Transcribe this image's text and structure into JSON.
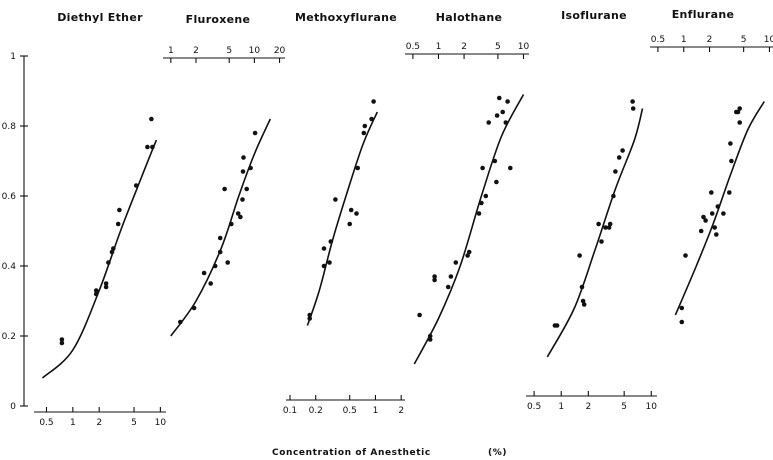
{
  "chart_data": {
    "type": "scatter",
    "xlabel": "Concentration of Anesthetic",
    "xlabel_unit": "(%)",
    "y_axis": {
      "ylim": [
        0,
        1
      ],
      "ticks": [
        "0",
        "0.2",
        "0.4",
        "0.6",
        "0.8",
        "1"
      ]
    },
    "x_scale": "log",
    "panels": [
      {
        "title": "Diethyl Ether",
        "axis_position": "bottom",
        "xlim": [
          0.4,
          11
        ],
        "ticks": [
          0.5,
          1,
          2,
          5,
          10
        ],
        "tick_labels": [
          "0.5",
          "1",
          "2",
          "5",
          "10"
        ],
        "points": [
          [
            0.75,
            0.19
          ],
          [
            0.75,
            0.18
          ],
          [
            1.85,
            0.33
          ],
          [
            1.85,
            0.32
          ],
          [
            2.4,
            0.35
          ],
          [
            2.4,
            0.34
          ],
          [
            2.55,
            0.41
          ],
          [
            2.8,
            0.44
          ],
          [
            2.9,
            0.45
          ],
          [
            3.3,
            0.52
          ],
          [
            3.4,
            0.56
          ],
          [
            5.3,
            0.63
          ],
          [
            7.1,
            0.74
          ],
          [
            7.9,
            0.82
          ],
          [
            8.1,
            0.74
          ]
        ],
        "curve": [
          [
            0.45,
            0.08
          ],
          [
            1.0,
            0.16
          ],
          [
            2.0,
            0.33
          ],
          [
            3.5,
            0.5
          ],
          [
            6.0,
            0.65
          ],
          [
            9.0,
            0.76
          ]
        ]
      },
      {
        "title": "Fluroxene",
        "axis_position": "top",
        "xlim": [
          0.9,
          22
        ],
        "ticks": [
          1,
          2,
          5,
          10,
          20
        ],
        "tick_labels": [
          "1",
          "2",
          "5",
          "10",
          "20"
        ],
        "points": [
          [
            1.3,
            0.24
          ],
          [
            1.9,
            0.28
          ],
          [
            2.5,
            0.38
          ],
          [
            3.0,
            0.35
          ],
          [
            3.4,
            0.4
          ],
          [
            3.9,
            0.44
          ],
          [
            3.9,
            0.48
          ],
          [
            4.4,
            0.62
          ],
          [
            4.8,
            0.41
          ],
          [
            5.3,
            0.52
          ],
          [
            6.4,
            0.55
          ],
          [
            6.8,
            0.54
          ],
          [
            7.2,
            0.59
          ],
          [
            7.3,
            0.67
          ],
          [
            7.4,
            0.71
          ],
          [
            8.1,
            0.62
          ],
          [
            9.0,
            0.68
          ],
          [
            10.2,
            0.78
          ]
        ],
        "curve": [
          [
            1.0,
            0.2
          ],
          [
            2.0,
            0.3
          ],
          [
            4.0,
            0.45
          ],
          [
            6.5,
            0.6
          ],
          [
            10.0,
            0.72
          ],
          [
            15.5,
            0.82
          ]
        ]
      },
      {
        "title": "Methoxyflurane",
        "axis_position": "bottom",
        "xlim": [
          0.1,
          2.1
        ],
        "ticks": [
          0.1,
          0.2,
          0.5,
          1,
          2
        ],
        "tick_labels": [
          "0.1",
          "0.2",
          "0.5",
          "1",
          "2"
        ],
        "points": [
          [
            0.17,
            0.25
          ],
          [
            0.17,
            0.26
          ],
          [
            0.25,
            0.4
          ],
          [
            0.25,
            0.45
          ],
          [
            0.29,
            0.41
          ],
          [
            0.3,
            0.47
          ],
          [
            0.34,
            0.59
          ],
          [
            0.5,
            0.52
          ],
          [
            0.52,
            0.56
          ],
          [
            0.6,
            0.55
          ],
          [
            0.62,
            0.68
          ],
          [
            0.73,
            0.78
          ],
          [
            0.75,
            0.8
          ],
          [
            0.9,
            0.82
          ],
          [
            0.95,
            0.87
          ]
        ],
        "curve": [
          [
            0.16,
            0.23
          ],
          [
            0.22,
            0.33
          ],
          [
            0.32,
            0.48
          ],
          [
            0.48,
            0.62
          ],
          [
            0.72,
            0.75
          ],
          [
            1.05,
            0.84
          ]
        ]
      },
      {
        "title": "Halothane",
        "axis_position": "top",
        "xlim": [
          0.45,
          11
        ],
        "ticks": [
          0.5,
          1,
          2,
          5,
          10
        ],
        "tick_labels": [
          "0.5",
          "1",
          "2",
          "5",
          "10"
        ],
        "points": [
          [
            0.6,
            0.26
          ],
          [
            0.8,
            0.19
          ],
          [
            0.8,
            0.2
          ],
          [
            0.9,
            0.36
          ],
          [
            0.9,
            0.37
          ],
          [
            1.3,
            0.34
          ],
          [
            1.4,
            0.37
          ],
          [
            1.6,
            0.41
          ],
          [
            2.2,
            0.43
          ],
          [
            2.3,
            0.44
          ],
          [
            3.0,
            0.55
          ],
          [
            3.2,
            0.58
          ],
          [
            3.3,
            0.68
          ],
          [
            3.6,
            0.6
          ],
          [
            3.9,
            0.81
          ],
          [
            4.6,
            0.7
          ],
          [
            4.8,
            0.64
          ],
          [
            4.9,
            0.83
          ],
          [
            5.2,
            0.88
          ],
          [
            5.7,
            0.84
          ],
          [
            6.2,
            0.81
          ],
          [
            6.5,
            0.87
          ],
          [
            7.0,
            0.68
          ]
        ],
        "curve": [
          [
            0.52,
            0.12
          ],
          [
            1.0,
            0.25
          ],
          [
            1.8,
            0.4
          ],
          [
            3.2,
            0.6
          ],
          [
            5.5,
            0.77
          ],
          [
            10.0,
            0.89
          ]
        ]
      },
      {
        "title": "Isoflurane",
        "axis_position": "bottom",
        "xlim": [
          0.45,
          11
        ],
        "ticks": [
          0.5,
          1,
          2,
          5,
          10
        ],
        "tick_labels": [
          "0.5",
          "1",
          "2",
          "5",
          "10"
        ],
        "points": [
          [
            0.85,
            0.23
          ],
          [
            0.9,
            0.23
          ],
          [
            1.6,
            0.43
          ],
          [
            1.7,
            0.34
          ],
          [
            1.75,
            0.3
          ],
          [
            1.8,
            0.29
          ],
          [
            2.6,
            0.52
          ],
          [
            2.8,
            0.47
          ],
          [
            3.1,
            0.51
          ],
          [
            3.4,
            0.51
          ],
          [
            3.5,
            0.52
          ],
          [
            3.8,
            0.6
          ],
          [
            4.0,
            0.67
          ],
          [
            4.4,
            0.71
          ],
          [
            4.8,
            0.73
          ],
          [
            6.2,
            0.87
          ],
          [
            6.3,
            0.85
          ]
        ],
        "curve": [
          [
            0.7,
            0.14
          ],
          [
            1.4,
            0.28
          ],
          [
            2.4,
            0.45
          ],
          [
            4.0,
            0.62
          ],
          [
            6.5,
            0.76
          ],
          [
            8.0,
            0.85
          ]
        ]
      },
      {
        "title": "Enflurane",
        "axis_position": "top",
        "xlim": [
          0.45,
          11
        ],
        "ticks": [
          0.5,
          1,
          2,
          5,
          10
        ],
        "tick_labels": [
          "0.5",
          "1",
          "2",
          "5",
          "10"
        ],
        "points": [
          [
            0.95,
            0.28
          ],
          [
            0.95,
            0.24
          ],
          [
            1.05,
            0.43
          ],
          [
            1.6,
            0.5
          ],
          [
            1.7,
            0.54
          ],
          [
            1.8,
            0.53
          ],
          [
            2.1,
            0.61
          ],
          [
            2.15,
            0.55
          ],
          [
            2.3,
            0.51
          ],
          [
            2.4,
            0.49
          ],
          [
            2.5,
            0.57
          ],
          [
            2.9,
            0.55
          ],
          [
            3.4,
            0.61
          ],
          [
            3.5,
            0.75
          ],
          [
            3.6,
            0.7
          ],
          [
            4.1,
            0.84
          ],
          [
            4.3,
            0.84
          ],
          [
            4.5,
            0.81
          ],
          [
            4.5,
            0.85
          ]
        ],
        "curve": [
          [
            0.8,
            0.26
          ],
          [
            1.4,
            0.4
          ],
          [
            2.2,
            0.52
          ],
          [
            3.5,
            0.66
          ],
          [
            5.6,
            0.79
          ],
          [
            8.7,
            0.87
          ]
        ]
      }
    ]
  }
}
